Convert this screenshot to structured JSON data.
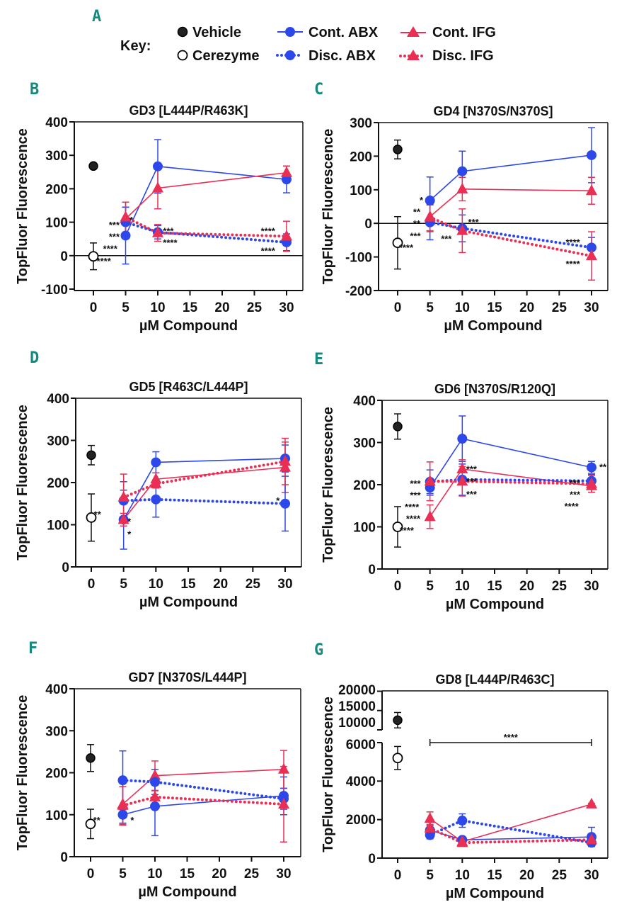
{
  "colors": {
    "abx": "#2d48ea",
    "ifg": "#ea2f55",
    "vehicle": "#222222",
    "panel_letter": "#138a80"
  },
  "panel_a_letter": "A",
  "legend": {
    "title": "Key:",
    "items": [
      {
        "label": "Vehicle",
        "marker": "filled-circle",
        "line": "none"
      },
      {
        "label": "Cont. ABX",
        "marker": "blue-circle",
        "line": "solid"
      },
      {
        "label": "Cont. IFG",
        "marker": "red-triangle",
        "line": "solid"
      },
      {
        "label": "Cerezyme",
        "marker": "open-circle",
        "line": "none"
      },
      {
        "label": "Disc. ABX",
        "marker": "blue-circle",
        "line": "dotted"
      },
      {
        "label": "Disc. IFG",
        "marker": "red-triangle",
        "line": "dotted"
      }
    ]
  },
  "chart_data": [
    {
      "letter": "B",
      "type": "line",
      "title": "GD3 [L444P/R463K]",
      "xlabel": "µM Compound",
      "ylabel": "TopFluor Fluorescence",
      "xticks": [
        0,
        5,
        10,
        15,
        20,
        25,
        30
      ],
      "yticks": [
        -100,
        0,
        100,
        200,
        300,
        400
      ],
      "ylim": [
        -100,
        400
      ],
      "zero_line": true,
      "vehicle": {
        "x": 0,
        "y": 268,
        "err": 8
      },
      "cerezyme": {
        "x": 0,
        "y": -2,
        "err": 40
      },
      "series": [
        {
          "name": "Cont. ABX",
          "points": [
            {
              "x": 5,
              "y": 60,
              "err": 85
            },
            {
              "x": 10,
              "y": 267,
              "err": 80
            },
            {
              "x": 30,
              "y": 228,
              "err": 40
            }
          ]
        },
        {
          "name": "Cont. IFG",
          "points": [
            {
              "x": 5,
              "y": 110,
              "err": 50
            },
            {
              "x": 10,
              "y": 202,
              "err": 62
            },
            {
              "x": 30,
              "y": 248,
              "err": 20
            }
          ]
        },
        {
          "name": "Disc. ABX",
          "points": [
            {
              "x": 5,
              "y": 100,
              "err": 45
            },
            {
              "x": 10,
              "y": 70,
              "err": 20
            },
            {
              "x": 30,
              "y": 40,
              "err": 25
            }
          ]
        },
        {
          "name": "Disc. IFG",
          "points": [
            {
              "x": 5,
              "y": 115,
              "err": 45
            },
            {
              "x": 10,
              "y": 68,
              "err": 25
            },
            {
              "x": 30,
              "y": 58,
              "err": 45
            }
          ]
        }
      ],
      "annotations": [
        {
          "text": "***",
          "x": 2.4,
          "y": 93
        },
        {
          "text": "***",
          "x": 2.4,
          "y": 75
        },
        {
          "text": "*",
          "x": 5.6,
          "y": 108
        },
        {
          "text": "****",
          "x": 1.5,
          "y": 35
        },
        {
          "text": "****",
          "x": 0.5,
          "y": 10
        },
        {
          "text": "***",
          "x": 10.8,
          "y": 75
        },
        {
          "text": "****",
          "x": 10.8,
          "y": 40
        },
        {
          "text": "****",
          "x": 26,
          "y": 75
        },
        {
          "text": "****",
          "x": 26,
          "y": 15
        }
      ]
    },
    {
      "letter": "C",
      "type": "line",
      "title": "GD4 [N370S/N370S]",
      "xlabel": "µM Compound",
      "ylabel": "TopFluor Fluorescence",
      "xticks": [
        0,
        5,
        10,
        15,
        20,
        25,
        30
      ],
      "yticks": [
        -200,
        -100,
        0,
        100,
        200,
        300
      ],
      "ylim": [
        -200,
        300
      ],
      "zero_line": true,
      "vehicle": {
        "x": 0,
        "y": 220,
        "err": 28
      },
      "cerezyme": {
        "x": 0,
        "y": -58,
        "err": 78
      },
      "series": [
        {
          "name": "Cont. ABX",
          "points": [
            {
              "x": 5,
              "y": 68,
              "err": 70
            },
            {
              "x": 10,
              "y": 155,
              "err": 60
            },
            {
              "x": 30,
              "y": 203,
              "err": 82
            }
          ]
        },
        {
          "name": "Cont. IFG",
          "points": [
            {
              "x": 5,
              "y": 20,
              "err": 45
            },
            {
              "x": 10,
              "y": 102,
              "err": 35
            },
            {
              "x": 30,
              "y": 97,
              "err": 40
            }
          ]
        },
        {
          "name": "Disc. ABX",
          "points": [
            {
              "x": 5,
              "y": 3,
              "err": 52
            },
            {
              "x": 10,
              "y": -15,
              "err": 40
            },
            {
              "x": 30,
              "y": -72,
              "err": 30
            }
          ]
        },
        {
          "name": "Disc. IFG",
          "points": [
            {
              "x": 5,
              "y": 18,
              "err": 40
            },
            {
              "x": 10,
              "y": -22,
              "err": 65
            },
            {
              "x": 30,
              "y": -97,
              "err": 72
            }
          ]
        }
      ],
      "annotations": [
        {
          "text": "*",
          "x": 3.4,
          "y": 70
        },
        {
          "text": "**",
          "x": 2.4,
          "y": 52
        },
        {
          "text": "**",
          "x": 2.4,
          "y": 5
        },
        {
          "text": "***",
          "x": 1.9,
          "y": -28
        },
        {
          "text": "****",
          "x": 0.2,
          "y": -50
        },
        {
          "text": "***",
          "x": 6.7,
          "y": -45
        },
        {
          "text": "***",
          "x": 10.9,
          "y": 5
        },
        {
          "text": "****",
          "x": 26,
          "y": -55
        },
        {
          "text": "****",
          "x": 26,
          "y": -120
        }
      ]
    },
    {
      "letter": "D",
      "type": "line",
      "title": "GD5 [R463C/L444P]",
      "xlabel": "µM Compound",
      "ylabel": "TopFluor Fluorescence",
      "xticks": [
        0,
        5,
        10,
        15,
        20,
        25,
        30
      ],
      "yticks": [
        0,
        100,
        200,
        300,
        400
      ],
      "ylim": [
        0,
        400
      ],
      "zero_line": false,
      "vehicle": {
        "x": 0,
        "y": 265,
        "err": 23
      },
      "cerezyme": {
        "x": 0,
        "y": 117,
        "err": 56
      },
      "series": [
        {
          "name": "Cont. ABX",
          "points": [
            {
              "x": 5,
              "y": 112,
              "err": 70
            },
            {
              "x": 10,
              "y": 248,
              "err": 25
            },
            {
              "x": 30,
              "y": 257,
              "err": 32
            }
          ]
        },
        {
          "name": "Cont. IFG",
          "points": [
            {
              "x": 5,
              "y": 112,
              "err": 15
            },
            {
              "x": 10,
              "y": 208,
              "err": 15
            },
            {
              "x": 30,
              "y": 236,
              "err": 60
            }
          ]
        },
        {
          "name": "Disc. ABX",
          "points": [
            {
              "x": 5,
              "y": 157,
              "err": 45
            },
            {
              "x": 10,
              "y": 160,
              "err": 42
            },
            {
              "x": 30,
              "y": 150,
              "err": 65
            }
          ]
        },
        {
          "name": "Disc. IFG",
          "points": [
            {
              "x": 5,
              "y": 165,
              "err": 55
            },
            {
              "x": 10,
              "y": 197,
              "err": 10
            },
            {
              "x": 30,
              "y": 250,
              "err": 55
            }
          ]
        }
      ],
      "annotations": [
        {
          "text": "**",
          "x": 0.4,
          "y": 125
        },
        {
          "text": "*",
          "x": 5.6,
          "y": 108
        },
        {
          "text": "*",
          "x": 5.6,
          "y": 95
        },
        {
          "text": "*",
          "x": 28.6,
          "y": 158
        }
      ]
    },
    {
      "letter": "E",
      "type": "line",
      "title": "GD6 [N370S/R120Q]",
      "xlabel": "µM Compound",
      "ylabel": "TopFluor Fluorescence",
      "xticks": [
        0,
        5,
        10,
        15,
        20,
        25,
        30
      ],
      "yticks": [
        0,
        100,
        200,
        300,
        400
      ],
      "ylim": [
        0,
        400
      ],
      "zero_line": false,
      "vehicle": {
        "x": 0,
        "y": 338,
        "err": 30
      },
      "cerezyme": {
        "x": 0,
        "y": 100,
        "err": 48
      },
      "series": [
        {
          "name": "Cont. ABX",
          "points": [
            {
              "x": 5,
              "y": 193,
              "err": 18
            },
            {
              "x": 10,
              "y": 309,
              "err": 54
            },
            {
              "x": 30,
              "y": 241,
              "err": 14
            }
          ]
        },
        {
          "name": "Cont. IFG",
          "points": [
            {
              "x": 5,
              "y": 124,
              "err": 28
            },
            {
              "x": 10,
              "y": 237,
              "err": 22
            },
            {
              "x": 30,
              "y": 197,
              "err": 15
            }
          ]
        },
        {
          "name": "Disc. ABX",
          "points": [
            {
              "x": 5,
              "y": 207,
              "err": 28
            },
            {
              "x": 10,
              "y": 212,
              "err": 37
            },
            {
              "x": 30,
              "y": 209,
              "err": 15
            }
          ]
        },
        {
          "name": "Disc. IFG",
          "points": [
            {
              "x": 5,
              "y": 208,
              "err": 46
            },
            {
              "x": 10,
              "y": 208,
              "err": 35
            },
            {
              "x": 30,
              "y": 202,
              "err": 20
            }
          ]
        }
      ],
      "annotations": [
        {
          "text": "***",
          "x": 1.9,
          "y": 203
        },
        {
          "text": "***",
          "x": 1.9,
          "y": 189
        },
        {
          "text": "****",
          "x": 1.1,
          "y": 175
        },
        {
          "text": "****",
          "x": 1.3,
          "y": 130
        },
        {
          "text": "****",
          "x": 0.3,
          "y": 113
        },
        {
          "text": "***",
          "x": 10.6,
          "y": 238
        },
        {
          "text": "***",
          "x": 10.6,
          "y": 208
        },
        {
          "text": "***",
          "x": 10.6,
          "y": 178
        },
        {
          "text": "**",
          "x": 31.2,
          "y": 243
        },
        {
          "text": "***",
          "x": 26.6,
          "y": 205
        },
        {
          "text": "***",
          "x": 26.6,
          "y": 177
        },
        {
          "text": "****",
          "x": 25.8,
          "y": 163
        }
      ]
    },
    {
      "letter": "F",
      "type": "line",
      "title": "GD7 [N370S/L444P]",
      "xlabel": "µM Compound",
      "ylabel": "TopFluor Fluorescence",
      "xticks": [
        0,
        5,
        10,
        15,
        20,
        25,
        30
      ],
      "yticks": [
        0,
        100,
        200,
        300,
        400
      ],
      "ylim": [
        0,
        400
      ],
      "zero_line": false,
      "vehicle": {
        "x": 0,
        "y": 235,
        "err": 32
      },
      "cerezyme": {
        "x": 0,
        "y": 78,
        "err": 35
      },
      "series": [
        {
          "name": "Cont. ABX",
          "points": [
            {
              "x": 5,
              "y": 100,
              "err": 20
            },
            {
              "x": 10,
              "y": 120,
              "err": 70
            },
            {
              "x": 30,
              "y": 145,
              "err": 45
            }
          ]
        },
        {
          "name": "Cont. IFG",
          "points": [
            {
              "x": 5,
              "y": 125,
              "err": 50
            },
            {
              "x": 10,
              "y": 193,
              "err": 35
            },
            {
              "x": 30,
              "y": 208,
              "err": 45
            }
          ]
        },
        {
          "name": "Disc. ABX",
          "points": [
            {
              "x": 5,
              "y": 182,
              "err": 70
            },
            {
              "x": 10,
              "y": 178,
              "err": 30
            },
            {
              "x": 30,
              "y": 138,
              "err": 25
            }
          ]
        },
        {
          "name": "Disc. IFG",
          "points": [
            {
              "x": 5,
              "y": 122,
              "err": 45
            },
            {
              "x": 10,
              "y": 142,
              "err": 15
            },
            {
              "x": 30,
              "y": 125,
              "err": 90
            }
          ]
        }
      ],
      "annotations": [
        {
          "text": "**",
          "x": 0.4,
          "y": 88
        },
        {
          "text": "*",
          "x": 6.2,
          "y": 88
        }
      ]
    },
    {
      "letter": "G",
      "type": "line",
      "title": "GD8 [L444P/R463C]",
      "xlabel": "µM Compound",
      "ylabel": "TopFluor Fluorescence",
      "xticks": [
        0,
        5,
        10,
        15,
        20,
        25,
        30
      ],
      "yticks": [
        0,
        2000,
        4000,
        6000,
        10000,
        15000,
        20000
      ],
      "ylim": [
        0,
        20000
      ],
      "axis_break": [
        6000,
        10000
      ],
      "zero_line": false,
      "vehicle": {
        "x": 0,
        "y": 12500,
        "err": 2000
      },
      "cerezyme": {
        "x": 0,
        "y": 5200,
        "err": 600
      },
      "series": [
        {
          "name": "Cont. ABX",
          "points": [
            {
              "x": 5,
              "y": 1450,
              "err": 250
            },
            {
              "x": 10,
              "y": 950,
              "err": 100
            },
            {
              "x": 30,
              "y": 1100,
              "err": 500
            }
          ]
        },
        {
          "name": "Cont. IFG",
          "points": [
            {
              "x": 5,
              "y": 2050,
              "err": 350
            },
            {
              "x": 10,
              "y": 850,
              "err": 100
            },
            {
              "x": 30,
              "y": 2800,
              "err": 50
            }
          ]
        },
        {
          "name": "Disc. ABX",
          "points": [
            {
              "x": 5,
              "y": 1200,
              "err": 200
            },
            {
              "x": 10,
              "y": 1950,
              "err": 350
            },
            {
              "x": 30,
              "y": 800,
              "err": 150
            }
          ]
        },
        {
          "name": "Disc. IFG",
          "points": [
            {
              "x": 5,
              "y": 1550,
              "err": 200
            },
            {
              "x": 10,
              "y": 800,
              "err": 100
            },
            {
              "x": 30,
              "y": 950,
              "err": 100
            }
          ]
        }
      ],
      "bracket": {
        "x1": 5,
        "x2": 30,
        "y": 6000,
        "text": "****"
      },
      "annotations": []
    }
  ]
}
